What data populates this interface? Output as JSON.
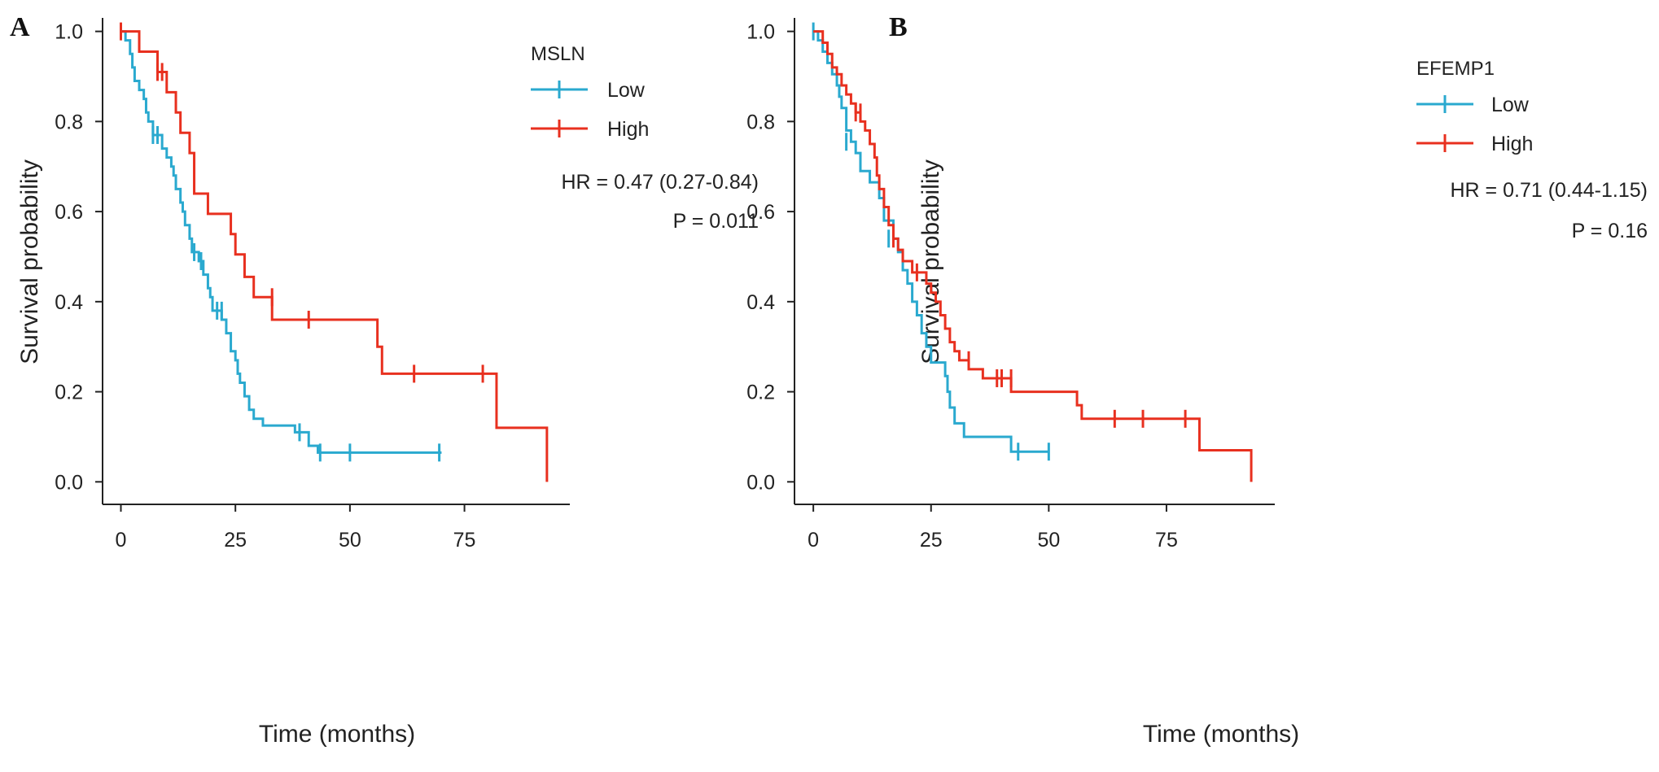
{
  "chart_data": [
    {
      "type": "line",
      "subtype": "kaplan-meier",
      "panel_label": "A",
      "title": "",
      "xlabel": "Time (months)",
      "ylabel": "Survival probability",
      "xlim": [
        -4,
        98
      ],
      "ylim": [
        -0.05,
        1.03
      ],
      "x_ticks": [
        0,
        25,
        50,
        75
      ],
      "x_tick_labels": [
        "0",
        "25",
        "50",
        "75"
      ],
      "y_ticks": [
        0.0,
        0.2,
        0.4,
        0.6,
        0.8,
        1.0
      ],
      "y_tick_labels": [
        "0.0",
        "0.2",
        "0.4",
        "0.6",
        "0.8",
        "1.0"
      ],
      "legend": {
        "title": "MSLN",
        "position": "top-right",
        "entries": [
          "Low",
          "High"
        ]
      },
      "annotations": [
        "HR = 0.47 (0.27-0.84)",
        "P = 0.011"
      ],
      "series": [
        {
          "name": "Low",
          "color": "#2aa9cf",
          "steps": [
            [
              0,
              1.0
            ],
            [
              1,
              0.98
            ],
            [
              2,
              0.95
            ],
            [
              2.5,
              0.92
            ],
            [
              3,
              0.89
            ],
            [
              4,
              0.87
            ],
            [
              5,
              0.85
            ],
            [
              5.5,
              0.82
            ],
            [
              6,
              0.8
            ],
            [
              7,
              0.77
            ],
            [
              9,
              0.74
            ],
            [
              10,
              0.72
            ],
            [
              11,
              0.7
            ],
            [
              11.5,
              0.68
            ],
            [
              12,
              0.65
            ],
            [
              13,
              0.62
            ],
            [
              13.5,
              0.6
            ],
            [
              14,
              0.57
            ],
            [
              15,
              0.54
            ],
            [
              15.5,
              0.51
            ],
            [
              17,
              0.49
            ],
            [
              18,
              0.46
            ],
            [
              19,
              0.43
            ],
            [
              19.5,
              0.41
            ],
            [
              20,
              0.38
            ],
            [
              22,
              0.36
            ],
            [
              23,
              0.33
            ],
            [
              24,
              0.29
            ],
            [
              25,
              0.27
            ],
            [
              25.5,
              0.24
            ],
            [
              26,
              0.22
            ],
            [
              27,
              0.19
            ],
            [
              28,
              0.16
            ],
            [
              29,
              0.14
            ],
            [
              31,
              0.125
            ],
            [
              38,
              0.11
            ],
            [
              41,
              0.08
            ],
            [
              43,
              0.065
            ],
            [
              70,
              0.065
            ]
          ],
          "censors": [
            [
              7,
              0.77
            ],
            [
              8,
              0.77
            ],
            [
              16,
              0.51
            ],
            [
              17.5,
              0.49
            ],
            [
              21,
              0.38
            ],
            [
              22,
              0.38
            ],
            [
              39,
              0.11
            ],
            [
              43.5,
              0.065
            ],
            [
              50,
              0.065
            ],
            [
              69.5,
              0.065
            ]
          ]
        },
        {
          "name": "High",
          "color": "#e8301f",
          "steps": [
            [
              0,
              1.0
            ],
            [
              4,
              0.955
            ],
            [
              8,
              0.91
            ],
            [
              10,
              0.865
            ],
            [
              12,
              0.82
            ],
            [
              13,
              0.775
            ],
            [
              15,
              0.73
            ],
            [
              16,
              0.64
            ],
            [
              19,
              0.595
            ],
            [
              24,
              0.55
            ],
            [
              25,
              0.505
            ],
            [
              27,
              0.455
            ],
            [
              29,
              0.41
            ],
            [
              33,
              0.36
            ],
            [
              56,
              0.3
            ],
            [
              57,
              0.24
            ],
            [
              82,
              0.12
            ],
            [
              93,
              0.0
            ]
          ],
          "censors": [
            [
              0,
              1.0
            ],
            [
              8,
              0.91
            ],
            [
              9,
              0.91
            ],
            [
              33,
              0.41
            ],
            [
              41,
              0.36
            ],
            [
              64,
              0.24
            ],
            [
              79,
              0.24
            ]
          ]
        }
      ]
    },
    {
      "type": "line",
      "subtype": "kaplan-meier",
      "panel_label": "B",
      "title": "",
      "xlabel": "Time (months)",
      "ylabel": "Survival probability",
      "xlim": [
        -4,
        98
      ],
      "ylim": [
        -0.05,
        1.03
      ],
      "x_ticks": [
        0,
        25,
        50,
        75
      ],
      "x_tick_labels": [
        "0",
        "25",
        "50",
        "75"
      ],
      "y_ticks": [
        0.0,
        0.2,
        0.4,
        0.6,
        0.8,
        1.0
      ],
      "y_tick_labels": [
        "0.0",
        "0.2",
        "0.4",
        "0.6",
        "0.8",
        "1.0"
      ],
      "legend": {
        "title": "EFEMP1",
        "position": "top-right",
        "entries": [
          "Low",
          "High"
        ]
      },
      "annotations": [
        "HR = 0.71 (0.44-1.15)",
        "P = 0.16"
      ],
      "series": [
        {
          "name": "Low",
          "color": "#2aa9cf",
          "steps": [
            [
              0,
              1.0
            ],
            [
              1,
              0.98
            ],
            [
              2,
              0.955
            ],
            [
              3,
              0.93
            ],
            [
              4,
              0.905
            ],
            [
              5,
              0.88
            ],
            [
              5.5,
              0.855
            ],
            [
              6,
              0.83
            ],
            [
              7,
              0.78
            ],
            [
              8,
              0.755
            ],
            [
              9,
              0.73
            ],
            [
              10,
              0.69
            ],
            [
              12,
              0.665
            ],
            [
              14,
              0.63
            ],
            [
              15,
              0.58
            ],
            [
              17,
              0.54
            ],
            [
              18,
              0.51
            ],
            [
              19,
              0.47
            ],
            [
              20,
              0.44
            ],
            [
              21,
              0.4
            ],
            [
              22,
              0.37
            ],
            [
              23,
              0.33
            ],
            [
              24,
              0.3
            ],
            [
              25,
              0.265
            ],
            [
              28,
              0.235
            ],
            [
              28.5,
              0.2
            ],
            [
              29,
              0.165
            ],
            [
              30,
              0.13
            ],
            [
              32,
              0.1
            ],
            [
              42,
              0.067
            ],
            [
              50,
              0.067
            ]
          ],
          "censors": [
            [
              0,
              1.0
            ],
            [
              7,
              0.755
            ],
            [
              16,
              0.54
            ],
            [
              43.5,
              0.067
            ],
            [
              50,
              0.067
            ]
          ]
        },
        {
          "name": "High",
          "color": "#e8301f",
          "steps": [
            [
              0,
              1.0
            ],
            [
              2,
              0.975
            ],
            [
              3,
              0.95
            ],
            [
              4,
              0.92
            ],
            [
              5,
              0.905
            ],
            [
              6,
              0.88
            ],
            [
              7,
              0.86
            ],
            [
              8,
              0.84
            ],
            [
              9,
              0.82
            ],
            [
              10,
              0.8
            ],
            [
              11,
              0.78
            ],
            [
              12,
              0.75
            ],
            [
              13,
              0.72
            ],
            [
              13.5,
              0.68
            ],
            [
              14,
              0.65
            ],
            [
              15,
              0.61
            ],
            [
              16,
              0.57
            ],
            [
              17,
              0.54
            ],
            [
              18,
              0.515
            ],
            [
              19,
              0.49
            ],
            [
              21,
              0.465
            ],
            [
              24,
              0.44
            ],
            [
              25,
              0.42
            ],
            [
              26,
              0.4
            ],
            [
              27,
              0.37
            ],
            [
              28,
              0.34
            ],
            [
              29,
              0.31
            ],
            [
              30,
              0.29
            ],
            [
              31,
              0.27
            ],
            [
              33,
              0.25
            ],
            [
              36,
              0.23
            ],
            [
              42,
              0.2
            ],
            [
              56,
              0.17
            ],
            [
              57,
              0.14
            ],
            [
              82,
              0.07
            ],
            [
              93,
              0.0
            ]
          ],
          "censors": [
            [
              9,
              0.82
            ],
            [
              10,
              0.82
            ],
            [
              17,
              0.54
            ],
            [
              22,
              0.465
            ],
            [
              33,
              0.27
            ],
            [
              39,
              0.23
            ],
            [
              40,
              0.23
            ],
            [
              42,
              0.23
            ],
            [
              64,
              0.14
            ],
            [
              70,
              0.14
            ],
            [
              79,
              0.14
            ]
          ]
        }
      ]
    }
  ]
}
